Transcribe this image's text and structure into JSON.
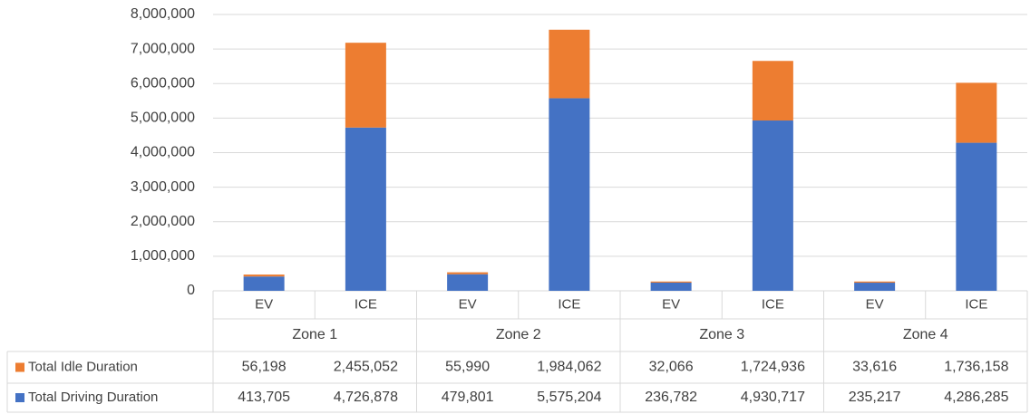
{
  "chart_data": {
    "type": "bar",
    "stacked": true,
    "groups": [
      "Zone 1",
      "Zone 2",
      "Zone 3",
      "Zone 4"
    ],
    "categories": [
      "EV",
      "ICE",
      "EV",
      "ICE",
      "EV",
      "ICE",
      "EV",
      "ICE"
    ],
    "series": [
      {
        "name": "Total Idle Duration",
        "color": "#ed7d31",
        "values": [
          56198,
          2455052,
          55990,
          1984062,
          32066,
          1724936,
          33616,
          1736158
        ],
        "value_labels": [
          "56,198",
          "2,455,052",
          "55,990",
          "1,984,062",
          "32,066",
          "1,724,936",
          "33,616",
          "1,736,158"
        ]
      },
      {
        "name": "Total Driving Duration",
        "color": "#4472c4",
        "values": [
          413705,
          4726878,
          479801,
          5575204,
          236782,
          4930717,
          235217,
          4286285
        ],
        "value_labels": [
          "413,705",
          "4,726,878",
          "479,801",
          "5,575,204",
          "236,782",
          "4,930,717",
          "235,217",
          "4,286,285"
        ]
      }
    ],
    "ylim": [
      0,
      8000000
    ],
    "yticks": [
      0,
      {
        "value": 1000000,
        "label": "1,000,000"
      },
      {
        "value": 2000000,
        "label": "2,000,000"
      },
      {
        "value": 3000000,
        "label": "3,000,000"
      },
      {
        "value": 4000000,
        "label": "4,000,000"
      },
      {
        "value": 5000000,
        "label": "5,000,000"
      },
      {
        "value": 6000000,
        "label": "6,000,000"
      },
      {
        "value": 7000000,
        "label": "7,000,000"
      },
      {
        "value": 8000000,
        "label": "8,000,000"
      }
    ],
    "grid": true
  }
}
